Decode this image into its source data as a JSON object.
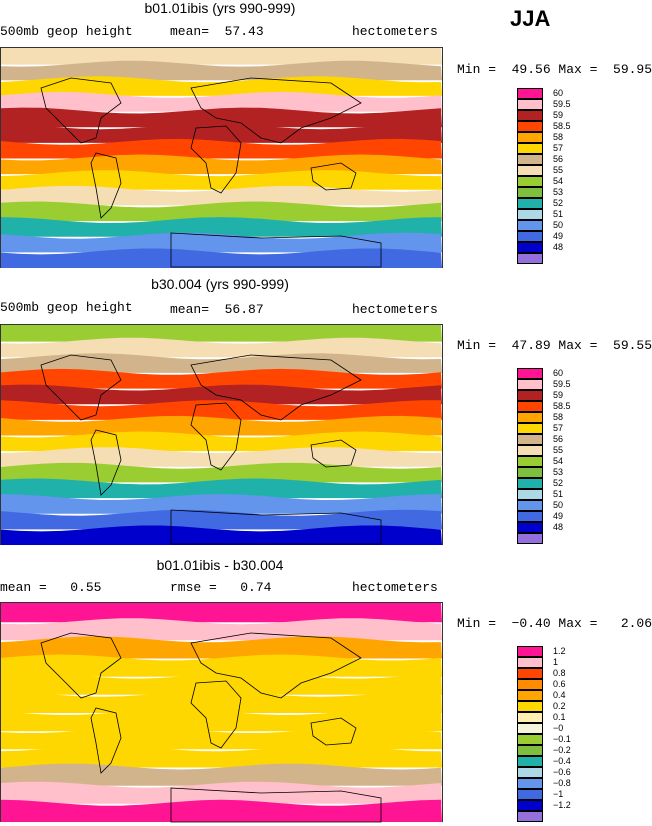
{
  "season": "JJA",
  "panels": [
    {
      "title": "b01.01ibis (yrs 990-999)",
      "left_label": "500mb geop height",
      "mid_label": "mean=  57.43",
      "units": "hectometers",
      "range_text": "Min =  49.56 Max =  59.95",
      "legend": [
        {
          "label": "60",
          "color": "#ff1493"
        },
        {
          "label": "59.5",
          "color": "#ffc0cb"
        },
        {
          "label": "59",
          "color": "#b22222"
        },
        {
          "label": "58.5",
          "color": "#ff4500"
        },
        {
          "label": "58",
          "color": "#ffa500"
        },
        {
          "label": "57",
          "color": "#ffd700"
        },
        {
          "label": "56",
          "color": "#d2b48c"
        },
        {
          "label": "55",
          "color": "#f5deb3"
        },
        {
          "label": "54",
          "color": "#9acd32"
        },
        {
          "label": "53",
          "color": "#7fbf3f"
        },
        {
          "label": "52",
          "color": "#20b2aa"
        },
        {
          "label": "51",
          "color": "#add8e6"
        },
        {
          "label": "50",
          "color": "#6495ed"
        },
        {
          "label": "49",
          "color": "#4169e1"
        },
        {
          "label": "48",
          "color": "#0000cd"
        },
        {
          "label": "",
          "color": "#9370db"
        }
      ],
      "map_bands": [
        "#f5deb3",
        "#d2b48c",
        "#ffd700",
        "#ffc0cb",
        "#b22222",
        "#b22222",
        "#ff4500",
        "#ffa500",
        "#ffd700",
        "#f5deb3",
        "#9acd32",
        "#20b2aa",
        "#6495ed",
        "#4169e1"
      ]
    },
    {
      "title": "b30.004 (yrs 990-999)",
      "left_label": "500mb geop height",
      "mid_label": "mean=  56.87",
      "units": "hectometers",
      "range_text": "Min =  47.89 Max =  59.55",
      "legend": [
        {
          "label": "60",
          "color": "#ff1493"
        },
        {
          "label": "59.5",
          "color": "#ffc0cb"
        },
        {
          "label": "59",
          "color": "#b22222"
        },
        {
          "label": "58.5",
          "color": "#ff4500"
        },
        {
          "label": "58",
          "color": "#ffa500"
        },
        {
          "label": "57",
          "color": "#ffd700"
        },
        {
          "label": "56",
          "color": "#d2b48c"
        },
        {
          "label": "55",
          "color": "#f5deb3"
        },
        {
          "label": "54",
          "color": "#9acd32"
        },
        {
          "label": "53",
          "color": "#7fbf3f"
        },
        {
          "label": "52",
          "color": "#20b2aa"
        },
        {
          "label": "51",
          "color": "#add8e6"
        },
        {
          "label": "50",
          "color": "#6495ed"
        },
        {
          "label": "49",
          "color": "#4169e1"
        },
        {
          "label": "48",
          "color": "#0000cd"
        },
        {
          "label": "",
          "color": "#9370db"
        }
      ],
      "map_bands": [
        "#9acd32",
        "#f5deb3",
        "#d2b48c",
        "#ff4500",
        "#b22222",
        "#ff4500",
        "#ffa500",
        "#ffd700",
        "#f5deb3",
        "#9acd32",
        "#20b2aa",
        "#6495ed",
        "#4169e1",
        "#0000cd"
      ]
    },
    {
      "title": "b01.01ibis - b30.004",
      "left_label": "mean =   0.55",
      "mid_label": "rmse =   0.74",
      "units": "hectometers",
      "range_text": "Min =  −0.40 Max =   2.06",
      "legend": [
        {
          "label": "1.2",
          "color": "#ff1493"
        },
        {
          "label": "1",
          "color": "#ffc0cb"
        },
        {
          "label": "0.8",
          "color": "#ff4500"
        },
        {
          "label": "0.6",
          "color": "#ff8c00"
        },
        {
          "label": "0.4",
          "color": "#ffa500"
        },
        {
          "label": "0.2",
          "color": "#ffd700"
        },
        {
          "label": "0.1",
          "color": "#ffefb0"
        },
        {
          "label": "−0",
          "color": "#f5f5dc"
        },
        {
          "label": "−0.1",
          "color": "#9acd32"
        },
        {
          "label": "−0.2",
          "color": "#7fbf3f"
        },
        {
          "label": "−0.4",
          "color": "#20b2aa"
        },
        {
          "label": "−0.6",
          "color": "#add8e6"
        },
        {
          "label": "−0.8",
          "color": "#6495ed"
        },
        {
          "label": "−1",
          "color": "#4169e1"
        },
        {
          "label": "−1.2",
          "color": "#0000cd"
        },
        {
          "label": "",
          "color": "#9370db"
        }
      ],
      "map_bands": [
        "#ff1493",
        "#ffc0cb",
        "#ffa500",
        "#ffd700",
        "#ffd700",
        "#ffd700",
        "#ffd700",
        "#ffd700",
        "#ffd700",
        "#d2b48c",
        "#ffc0cb",
        "#ff1493"
      ]
    }
  ]
}
